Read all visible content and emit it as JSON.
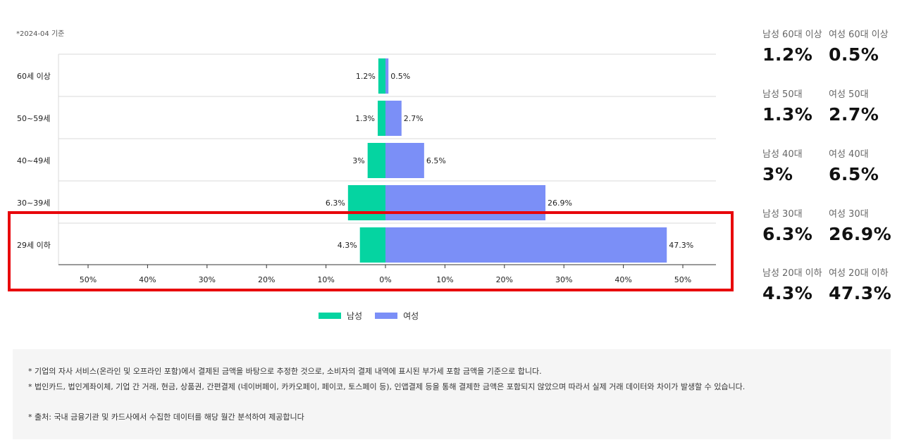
{
  "as_of": "*2024-04 기준",
  "colors": {
    "male": "#05d4a1",
    "female": "#7b8ff7",
    "highlight": "#e8050b"
  },
  "legend": {
    "male_label": "남성",
    "female_label": "여성"
  },
  "chart_data": {
    "type": "bar",
    "orientation": "horizontal-diverging",
    "categories": [
      "60세 이상",
      "50~59세",
      "40~49세",
      "30~39세",
      "29세 이하"
    ],
    "series": [
      {
        "name": "남성",
        "values": [
          1.2,
          1.3,
          3,
          6.3,
          4.3
        ],
        "labels": [
          "1.2%",
          "1.3%",
          "3%",
          "6.3%",
          "4.3%"
        ]
      },
      {
        "name": "여성",
        "values": [
          0.5,
          2.7,
          6.5,
          26.9,
          47.3
        ],
        "labels": [
          "0.5%",
          "2.7%",
          "6.5%",
          "26.9%",
          "47.3%"
        ]
      }
    ],
    "xlim": [
      -55,
      55
    ],
    "xticks": [
      {
        "value": -50,
        "label": "50%"
      },
      {
        "value": -40,
        "label": "40%"
      },
      {
        "value": -30,
        "label": "30%"
      },
      {
        "value": -20,
        "label": "20%"
      },
      {
        "value": -10,
        "label": "10%"
      },
      {
        "value": 0,
        "label": "0%"
      },
      {
        "value": 10,
        "label": "10%"
      },
      {
        "value": 20,
        "label": "20%"
      },
      {
        "value": 30,
        "label": "30%"
      },
      {
        "value": 40,
        "label": "40%"
      },
      {
        "value": 50,
        "label": "50%"
      }
    ],
    "highlighted_category": "29세 이하",
    "legend_position": "bottom"
  },
  "stats": [
    {
      "label": "남성 60대 이상",
      "value": "1.2%"
    },
    {
      "label": "여성 60대 이상",
      "value": "0.5%"
    },
    {
      "label": "남성 50대",
      "value": "1.3%"
    },
    {
      "label": "여성 50대",
      "value": "2.7%"
    },
    {
      "label": "남성 40대",
      "value": "3%"
    },
    {
      "label": "여성 40대",
      "value": "6.5%"
    },
    {
      "label": "남성 30대",
      "value": "6.3%"
    },
    {
      "label": "여성 30대",
      "value": "26.9%"
    },
    {
      "label": "남성 20대 이하",
      "value": "4.3%"
    },
    {
      "label": "여성 20대 이하",
      "value": "47.3%"
    }
  ],
  "notes": [
    "* 기업의 자사 서비스(온라인 및 오프라인 포함)에서 결제된 금액을 바탕으로 추정한 것으로, 소비자의 결제 내역에 표시된 부가세 포함 금액을 기준으로 합니다.",
    "* 법인카드, 법인계좌이체, 기업 간 거래, 현금, 상품권, 간편결제 (네이버페이, 카카오페이, 페이코, 토스페이 등), 인앱결제 등을 통해 결제한 금액은 포함되지 않았으며 따라서 실제 거래 데이터와 차이가 발생할 수 있습니다.",
    "* 출처:  국내 금융기관 및 카드사에서 수집한 데이터를 해당 월간 분석하여 제공합니다"
  ]
}
